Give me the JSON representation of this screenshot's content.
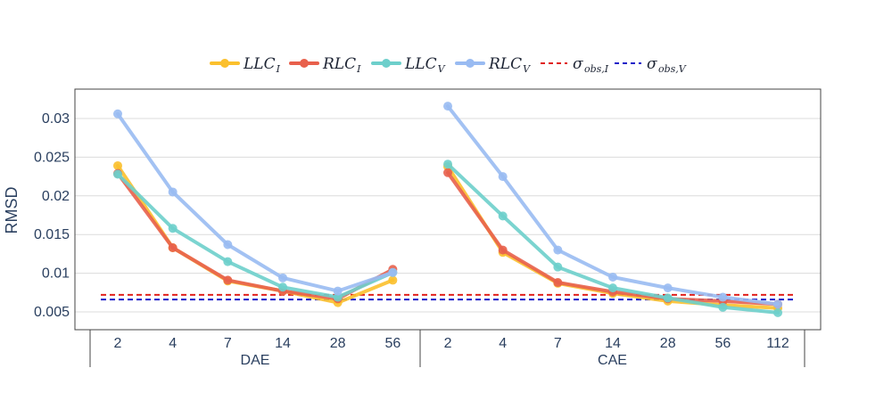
{
  "chart_data": {
    "type": "line",
    "ylabel": "RMSD",
    "ylim": [
      0.0027,
      0.0338
    ],
    "yticks": [
      0.005,
      0.01,
      0.015,
      0.02,
      0.025,
      0.03
    ],
    "ytick_labels": [
      "0.005",
      "0.01",
      "0.015",
      "0.02",
      "0.025",
      "0.03"
    ],
    "groups": [
      {
        "name": "DAE",
        "categories": [
          "2",
          "4",
          "7",
          "14",
          "28",
          "56"
        ]
      },
      {
        "name": "CAE",
        "categories": [
          "2",
          "4",
          "7",
          "14",
          "28",
          "56",
          "112"
        ]
      }
    ],
    "series": [
      {
        "name": "LLC",
        "sub": "I",
        "color": "#fbc02d",
        "values": [
          [
            0.0239,
            0.0133,
            0.009,
            0.0077,
            0.0062,
            0.0091
          ],
          [
            0.0238,
            0.0127,
            0.0087,
            0.0074,
            0.0064,
            0.0059,
            0.0055
          ]
        ]
      },
      {
        "name": "RLC",
        "sub": "I",
        "color": "#e8604c",
        "values": [
          [
            0.0229,
            0.0133,
            0.0091,
            0.0077,
            0.0067,
            0.0105
          ],
          [
            0.023,
            0.013,
            0.0088,
            0.0076,
            0.0067,
            0.0064,
            0.006
          ]
        ]
      },
      {
        "name": "LLC",
        "sub": "V",
        "color": "#6dcfcb",
        "values": [
          [
            0.0228,
            0.0158,
            0.0115,
            0.0082,
            0.0069,
            0.0101
          ],
          [
            0.0241,
            0.0174,
            0.0108,
            0.0081,
            0.0068,
            0.0056,
            0.0049
          ]
        ]
      },
      {
        "name": "RLC",
        "sub": "V",
        "color": "#99bbf2",
        "values": [
          [
            0.0306,
            0.0205,
            0.0137,
            0.0094,
            0.0077,
            0.0101
          ],
          [
            0.0316,
            0.0225,
            0.013,
            0.0095,
            0.0081,
            0.0069,
            0.006
          ]
        ]
      }
    ],
    "reference_lines": [
      {
        "name": "σ",
        "sub": "obs,I",
        "value": 0.0072,
        "color": "#e0201c",
        "style": "dashed"
      },
      {
        "name": "σ",
        "sub": "obs,V",
        "value": 0.0066,
        "color": "#1c1cc8",
        "style": "dashed"
      }
    ],
    "legend_position": "top-center",
    "grid": true
  }
}
